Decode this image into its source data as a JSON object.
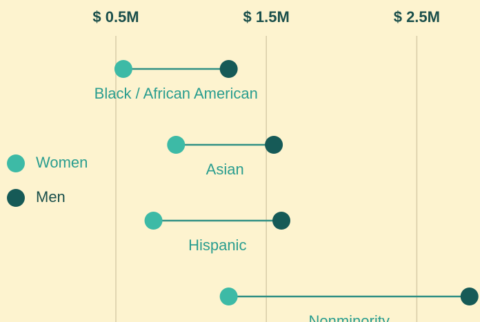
{
  "chart_data": {
    "type": "dumbbell",
    "categories": [
      "Black / African American",
      "Asian",
      "Hispanic",
      "Nonminority"
    ],
    "series": [
      {
        "name": "Women",
        "color": "#3dbaa6",
        "values": [
          0.55,
          0.9,
          0.75,
          1.25
        ]
      },
      {
        "name": "Men",
        "color": "#165a57",
        "values": [
          1.25,
          1.55,
          1.6,
          2.85
        ]
      }
    ],
    "xlim": [
      -0.27,
      2.92
    ],
    "xticks": [
      {
        "value": 0.5,
        "label": "$ 0.5M"
      },
      {
        "value": 1.5,
        "label": "$ 1.5M"
      },
      {
        "value": 2.5,
        "label": "$ 2.5M"
      }
    ],
    "grid": true,
    "legend": "left"
  }
}
